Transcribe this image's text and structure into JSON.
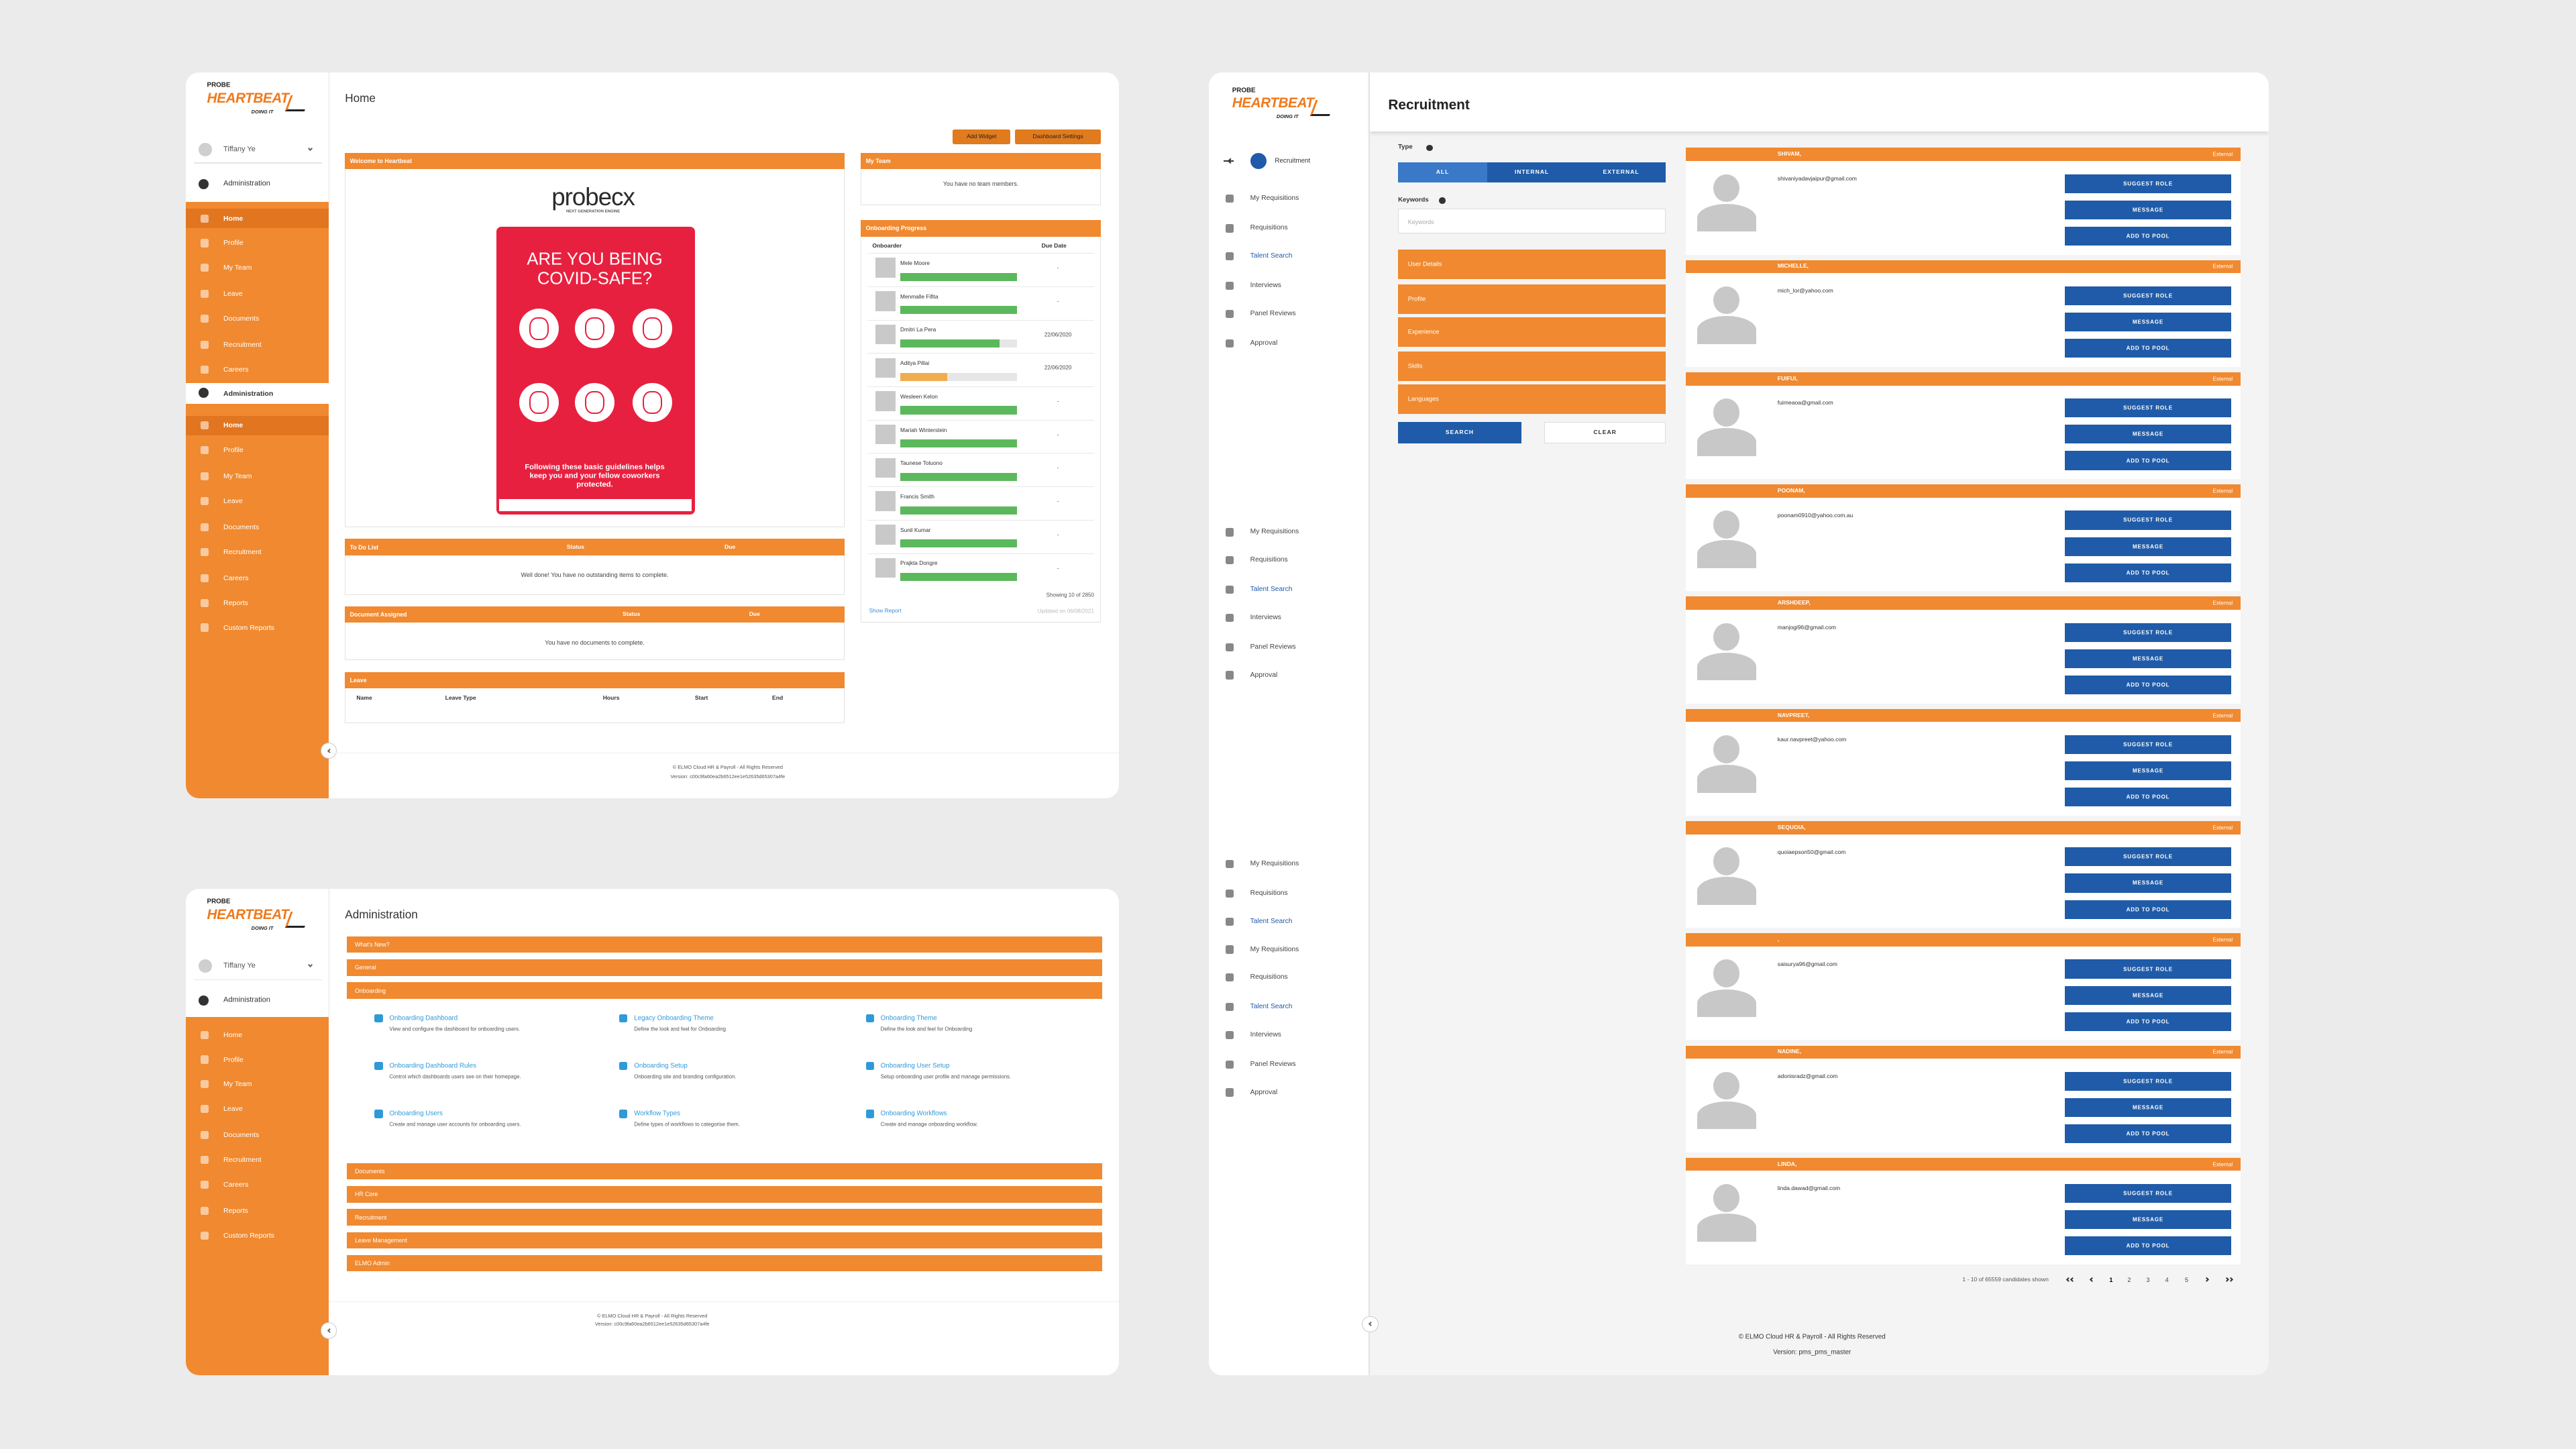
{
  "home_panel": {
    "logo": {
      "brand": "PROBE",
      "name": "HEARTBEAT",
      "tagline": "DOING IT"
    },
    "user": "Tiffany Ye",
    "admin_link": "Administration",
    "menu": [
      "Home",
      "Profile",
      "My Team",
      "Leave",
      "Documents",
      "Recruitment",
      "Careers"
    ],
    "admin_section": "Administration",
    "admin_menu": [
      "Home",
      "Profile",
      "My Team",
      "Leave",
      "Documents",
      "Recruitment",
      "Careers",
      "Reports",
      "Custom Reports"
    ],
    "title": "Home",
    "buttons": [
      "Add Widget",
      "Dashboard Settings"
    ],
    "welcome": {
      "title": "Welcome to Heartbeat",
      "logo": "probecx",
      "logo_sub": "NEXT GENERATION ENGINE",
      "poster_title": "ARE YOU BEING COVID-SAFE?",
      "poster_text": "Following these basic guidelines helps keep you and your fellow coworkers protected."
    },
    "todo": {
      "title": "To Do List",
      "columns": [
        "Status",
        "Due"
      ],
      "empty": "Well done! You have no outstanding items to complete."
    },
    "documents": {
      "title": "Document Assigned",
      "columns": [
        "Status",
        "Due"
      ],
      "empty": "You have no documents to complete."
    },
    "leave": {
      "title": "Leave",
      "columns": [
        "Name",
        "Leave Type",
        "Hours",
        "Start",
        "End"
      ]
    },
    "my_team": {
      "title": "My Team",
      "empty": "You have no team members."
    },
    "onboarding": {
      "title": "Onboarding Progress",
      "columns": [
        "Onboarder",
        "Due Date"
      ],
      "rows": [
        {
          "name": "Mele Moore",
          "progress": 100,
          "color": "#5cb85c",
          "due": "-"
        },
        {
          "name": "Menmalle Fifita",
          "progress": 100,
          "color": "#5cb85c",
          "due": "-"
        },
        {
          "name": "Dmitri La Pera",
          "progress": 85,
          "color": "#5cb85c",
          "due": "22/06/2020"
        },
        {
          "name": "Aditya Pillai",
          "progress": 40,
          "color": "#f0ad4e",
          "due": "22/06/2020"
        },
        {
          "name": "Wesleen Kelon",
          "progress": 100,
          "color": "#5cb85c",
          "due": "-"
        },
        {
          "name": "Mariah Winterstein",
          "progress": 100,
          "color": "#5cb85c",
          "due": "-"
        },
        {
          "name": "Taunese Toluono",
          "progress": 100,
          "color": "#5cb85c",
          "due": "-"
        },
        {
          "name": "Francis Smith",
          "progress": 100,
          "color": "#5cb85c",
          "due": "-"
        },
        {
          "name": "Sunil Kumar",
          "progress": 100,
          "color": "#5cb85c",
          "due": "-"
        },
        {
          "name": "Prajkta Dongre",
          "progress": 100,
          "color": "#5cb85c",
          "due": "-"
        }
      ],
      "showing": "Showing 10 of 2850",
      "link": "Show Report",
      "updated": "Updated on 06/08/2021"
    },
    "footer": {
      "copyright": "© ELMO Cloud HR & Payroll - All Rights Reserved",
      "version": "Version: c00c9fa60ea2b6512ee1e52635d65307a4fe"
    }
  },
  "admin_panel": {
    "logo": {
      "brand": "PROBE",
      "name": "HEARTBEAT",
      "tagline": "DOING IT"
    },
    "user": "Tiffany Ye",
    "admin_link": "Administration",
    "menu": [
      "Home",
      "Profile",
      "My Team",
      "Leave",
      "Documents",
      "Recruitment",
      "Careers",
      "Reports",
      "Custom Reports"
    ],
    "title": "Administration",
    "sections_top": [
      "What's New?",
      "General",
      "Onboarding"
    ],
    "items": [
      {
        "title": "Onboarding Dashboard",
        "desc": "View and configure the dashboard for onboarding users."
      },
      {
        "title": "Legacy Onboarding Theme",
        "desc": "Define the look and feel for Onboarding"
      },
      {
        "title": "Onboarding Theme",
        "desc": "Define the look and feel for Onboarding"
      },
      {
        "title": "Onboarding Dashboard Rules",
        "desc": "Control which dashboards users see on their homepage."
      },
      {
        "title": "Onboarding Setup",
        "desc": "Onboarding site and branding configuration."
      },
      {
        "title": "Onboarding User Setup",
        "desc": "Setup onboarding user profile and manage permissions."
      },
      {
        "title": "Onboarding Users",
        "desc": "Create and manage user accounts for onboarding users."
      },
      {
        "title": "Workflow Types",
        "desc": "Define types of workflows to categorise them."
      },
      {
        "title": "Onboarding Workflows",
        "desc": "Create and manage onboarding workflow."
      }
    ],
    "sections_bottom": [
      "Documents",
      "HR Core",
      "Recruitment",
      "Leave Management",
      "ELMO Admin"
    ],
    "footer": {
      "copyright": "© ELMO Cloud HR & Payroll - All Rights Reserved",
      "version": "Version: c00c9fa60ea2b6512ee1e52635d65307a4fe"
    }
  },
  "recruitment_panel": {
    "logo": {
      "brand": "PROBE",
      "name": "HEARTBEAT",
      "tagline": "DOING IT"
    },
    "breadcrumb": "Recruitment",
    "nav": [
      [
        "My Requisitions",
        "Requisitions",
        "Talent Search",
        "Interviews",
        "Panel Reviews",
        "Approval"
      ],
      [
        "My Requisitions",
        "Requisitions",
        "Talent Search",
        "Interviews",
        "Panel Reviews",
        "Approval"
      ],
      [
        "My Requisitions",
        "Requisitions",
        "Talent Search",
        "My Requisitions",
        "Requisitions",
        "Talent Search",
        "Interviews",
        "Panel Reviews",
        "Approval"
      ]
    ],
    "title": "Recruitment",
    "filter": {
      "type_label": "Type",
      "types": [
        "ALL",
        "INTERNAL",
        "EXTERNAL"
      ],
      "keywords_label": "Keywords",
      "keywords_placeholder": "Keywords",
      "sections": [
        "User Details",
        "Profile",
        "Experience",
        "Skills",
        "Languages"
      ],
      "search": "SEARCH",
      "clear": "CLEAR"
    },
    "candidates": [
      {
        "name": "SHIVAM,",
        "tag": "External",
        "email": "shivaniyadavjaipur@gmail.com"
      },
      {
        "name": "MICHELLE,",
        "tag": "External",
        "email": "mich_lor@yahoo.com"
      },
      {
        "name": "FUIFUI,",
        "tag": "External",
        "email": "fuimeaoa@gmail.com"
      },
      {
        "name": "POONAM,",
        "tag": "External",
        "email": "poonam0910@yahoo.com.au"
      },
      {
        "name": "ARSHDEEP,",
        "tag": "External",
        "email": "manjogi96@gmail.com"
      },
      {
        "name": "NAVPREET,",
        "tag": "External",
        "email": "kaur.navpreet@yahoo.com"
      },
      {
        "name": "SEQUOIA,",
        "tag": "External",
        "email": "quoiaepson50@gmail.com"
      },
      {
        "name": ",",
        "tag": "External",
        "email": "saisurya96@gmail.com"
      },
      {
        "name": "NADINE,",
        "tag": "External",
        "email": "adonisradz@gmail.com"
      },
      {
        "name": "LINDA,",
        "tag": "External",
        "email": "linda.dawad@gmail.com"
      }
    ],
    "actions": [
      "SUGGEST ROLE",
      "MESSAGE",
      "ADD TO POOL"
    ],
    "pagination": {
      "summary": "1 - 10 of 65559 candidates shown",
      "pages": [
        1,
        2,
        3,
        4,
        5
      ]
    },
    "footer": {
      "copyright": "© ELMO Cloud HR & Payroll - All Rights Reserved",
      "version": "Version: pms_pms_master"
    }
  }
}
